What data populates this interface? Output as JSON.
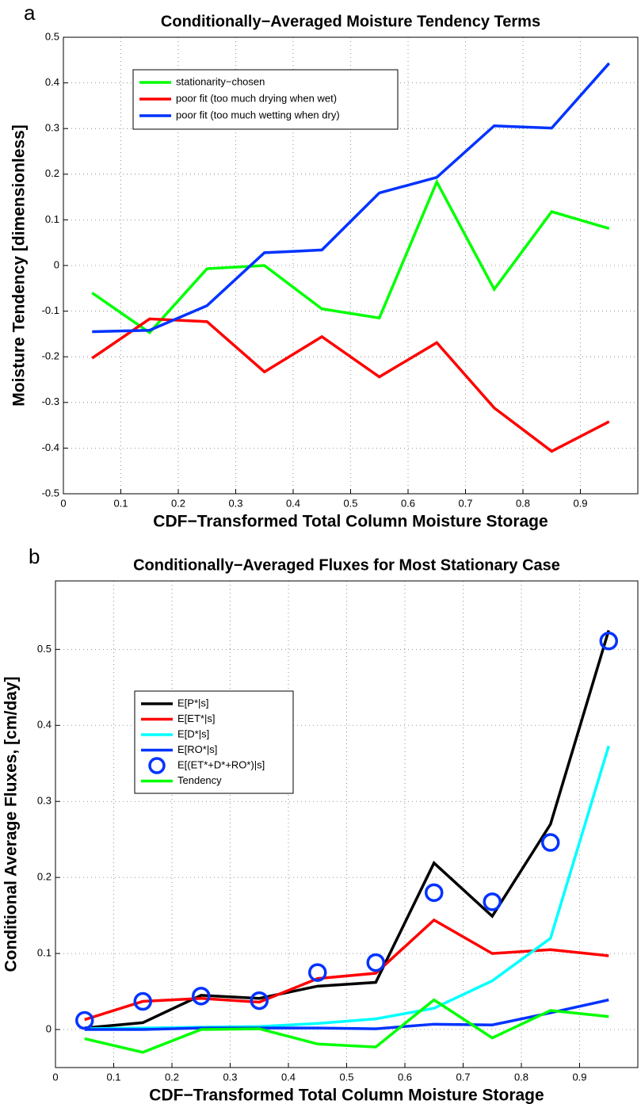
{
  "chart_data": [
    {
      "type": "line",
      "panel_label": "a",
      "title": "Conditionally−Averaged Moisture Tendency Terms",
      "xlabel": "CDF−Transformed Total Column Moisture Storage",
      "ylabel": "Moisture Tendency [dimensionless]",
      "x": [
        0.05,
        0.15,
        0.25,
        0.35,
        0.45,
        0.55,
        0.65,
        0.75,
        0.85,
        0.95
      ],
      "xlim": [
        0,
        1
      ],
      "xticks": [
        0,
        0.1,
        0.2,
        0.3,
        0.4,
        0.5,
        0.6,
        0.7,
        0.8,
        0.9
      ],
      "ylim": [
        -0.5,
        0.5
      ],
      "yticks": [
        -0.5,
        -0.4,
        -0.3,
        -0.2,
        -0.1,
        0,
        0.1,
        0.2,
        0.3,
        0.4,
        0.5
      ],
      "grid": true,
      "legend": "upper left",
      "series": [
        {
          "name": "stationarity−chosen",
          "color": "#00ff00",
          "values": [
            -0.06,
            -0.147,
            -0.007,
            0.0,
            -0.095,
            -0.115,
            0.183,
            -0.052,
            0.118,
            0.081
          ]
        },
        {
          "name": "poor fit (too much drying when wet)",
          "color": "#ff0000",
          "values": [
            -0.203,
            -0.117,
            -0.123,
            -0.233,
            -0.156,
            -0.244,
            -0.169,
            -0.312,
            -0.407,
            -0.342
          ]
        },
        {
          "name": "poor fit (too much wetting when dry)",
          "color": "#0033ff",
          "values": [
            -0.145,
            -0.142,
            -0.088,
            0.028,
            0.034,
            0.159,
            0.193,
            0.306,
            0.301,
            0.443
          ]
        }
      ]
    },
    {
      "type": "line",
      "panel_label": "b",
      "title": "Conditionally−Averaged Fluxes for Most Stationary Case",
      "xlabel": "CDF−Transformed Total Column Moisture Storage",
      "ylabel": "Conditional Average Fluxes, [cm/day]",
      "x": [
        0.05,
        0.15,
        0.25,
        0.35,
        0.45,
        0.55,
        0.65,
        0.75,
        0.85,
        0.95
      ],
      "xlim": [
        0,
        1
      ],
      "xticks": [
        0,
        0.1,
        0.2,
        0.3,
        0.4,
        0.5,
        0.6,
        0.7,
        0.8,
        0.9
      ],
      "ylim": [
        -0.05,
        0.59
      ],
      "yticks": [
        0,
        0.1,
        0.2,
        0.3,
        0.4,
        0.5
      ],
      "grid": true,
      "legend": "upper left",
      "series": [
        {
          "name": "E[P*|s]",
          "color": "#000000",
          "values": [
            0.002,
            0.009,
            0.045,
            0.041,
            0.057,
            0.062,
            0.219,
            0.149,
            0.27,
            0.525
          ]
        },
        {
          "name": "E[ET*|s]",
          "color": "#ff0000",
          "values": [
            0.013,
            0.037,
            0.041,
            0.036,
            0.067,
            0.074,
            0.144,
            0.1,
            0.105,
            0.097
          ]
        },
        {
          "name": "E[D*|s]",
          "color": "#00ffff",
          "values": [
            0.001,
            0.002,
            0.003,
            0.004,
            0.008,
            0.014,
            0.028,
            0.064,
            0.12,
            0.373
          ]
        },
        {
          "name": "E[RO*|s]",
          "color": "#0033ff",
          "values": [
            0.0,
            0.0,
            0.002,
            0.002,
            0.002,
            0.001,
            0.007,
            0.006,
            0.022,
            0.039
          ]
        },
        {
          "name": "E[(ET*+D*+RO*)|s]",
          "color": "#0033ff",
          "marker": "o",
          "values": [
            0.012,
            0.037,
            0.044,
            0.038,
            0.075,
            0.088,
            0.18,
            0.168,
            0.246,
            0.511
          ]
        },
        {
          "name": "Tendency",
          "color": "#00ff00",
          "values": [
            -0.012,
            -0.03,
            0.0,
            0.001,
            -0.019,
            -0.023,
            0.039,
            -0.011,
            0.025,
            0.017
          ]
        }
      ]
    }
  ]
}
